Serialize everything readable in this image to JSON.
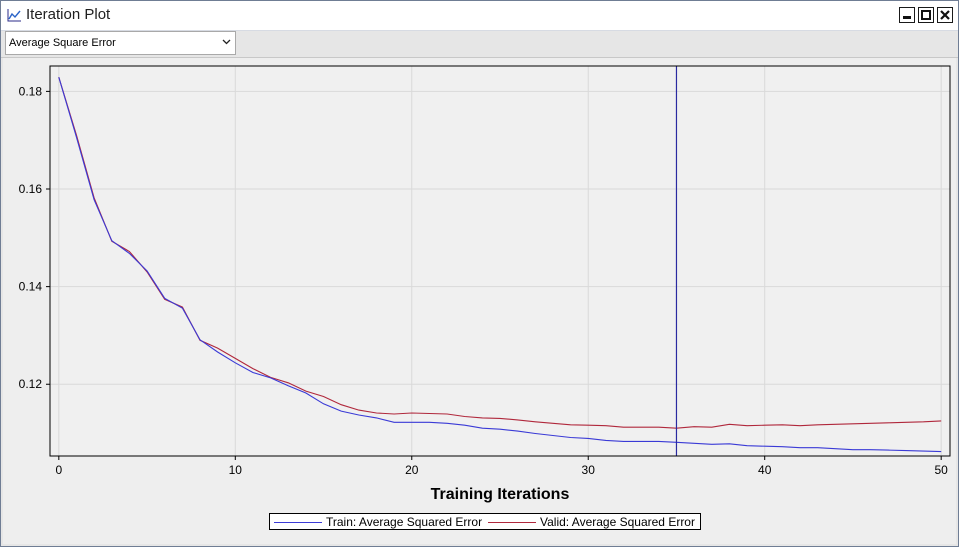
{
  "window": {
    "title": "Iteration Plot",
    "controls": [
      "minimize",
      "maximize",
      "close"
    ]
  },
  "toolbar": {
    "statistic_select": {
      "value": "Average Square Error"
    }
  },
  "colors": {
    "train": "#3a3ad6",
    "valid": "#b0283c",
    "selected_iteration_line": "#2a2aa0"
  },
  "chart_data": {
    "type": "line",
    "xlabel": "Training Iterations",
    "ylabel": "",
    "xlim": [
      -0.5,
      50.5
    ],
    "ylim": [
      0.1053,
      0.1852
    ],
    "xticks": [
      0,
      10,
      20,
      30,
      40,
      50
    ],
    "yticks": [
      0.12,
      0.14,
      0.16,
      0.18
    ],
    "grid": true,
    "legend_position": "bottom",
    "reference_line_x": 35,
    "x": [
      0,
      1,
      2,
      3,
      4,
      5,
      6,
      7,
      8,
      9,
      10,
      11,
      12,
      13,
      14,
      15,
      16,
      17,
      18,
      19,
      20,
      21,
      22,
      23,
      24,
      25,
      26,
      27,
      28,
      29,
      30,
      31,
      32,
      33,
      34,
      35,
      36,
      37,
      38,
      39,
      40,
      41,
      42,
      43,
      44,
      45,
      46,
      47,
      48,
      49,
      50
    ],
    "series": [
      {
        "name": "Train: Average Squared Error",
        "values": [
          0.1829,
          0.1706,
          0.1578,
          0.1494,
          0.1468,
          0.1432,
          0.1376,
          0.1356,
          0.1291,
          0.1266,
          0.1244,
          0.1224,
          0.1213,
          0.1197,
          0.1182,
          0.116,
          0.1145,
          0.1137,
          0.1131,
          0.1122,
          0.1122,
          0.1122,
          0.112,
          0.1116,
          0.111,
          0.1108,
          0.1104,
          0.1099,
          0.1095,
          0.1091,
          0.1089,
          0.1085,
          0.1083,
          0.1083,
          0.1083,
          0.1081,
          0.1079,
          0.1077,
          0.1078,
          0.1074,
          0.1073,
          0.1072,
          0.107,
          0.107,
          0.1068,
          0.1066,
          0.1066,
          0.1065,
          0.1064,
          0.1063,
          0.1062
        ]
      },
      {
        "name": "Valid: Average Squared Error",
        "values": [
          0.1829,
          0.171,
          0.1582,
          0.1493,
          0.1472,
          0.143,
          0.1374,
          0.1358,
          0.129,
          0.1274,
          0.1253,
          0.1232,
          0.1214,
          0.1203,
          0.1186,
          0.1175,
          0.1158,
          0.1147,
          0.1141,
          0.1139,
          0.1141,
          0.114,
          0.1139,
          0.1134,
          0.1131,
          0.113,
          0.1127,
          0.1123,
          0.112,
          0.1117,
          0.1116,
          0.1115,
          0.1112,
          0.1112,
          0.1112,
          0.111,
          0.1113,
          0.1112,
          0.1118,
          0.1115,
          0.1116,
          0.1117,
          0.1115,
          0.1117,
          0.1118,
          0.1119,
          0.112,
          0.1121,
          0.1122,
          0.1123,
          0.1125
        ]
      }
    ]
  }
}
